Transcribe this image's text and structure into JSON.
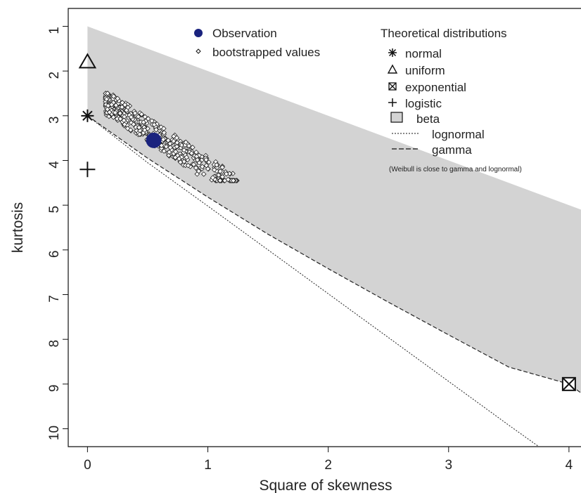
{
  "chart_data": {
    "type": "scatter",
    "title": "",
    "xlabel": "Square of skewness",
    "ylabel": "kurtosis",
    "xlim": [
      -0.16,
      4.1
    ],
    "ylim": [
      10.4,
      0.6
    ],
    "x_ticks": [
      0,
      1,
      2,
      3,
      4
    ],
    "y_ticks": [
      1,
      2,
      3,
      4,
      5,
      6,
      7,
      8,
      9,
      10
    ],
    "beta_region": {
      "color": "#d3d3d3",
      "upper": [
        [
          0,
          1
        ],
        [
          4.1,
          5.1
        ]
      ],
      "lower": [
        [
          0,
          3
        ],
        [
          0.5,
          3.95
        ],
        [
          1,
          4.82
        ],
        [
          1.5,
          5.65
        ],
        [
          2,
          6.42
        ],
        [
          2.5,
          7.17
        ],
        [
          3,
          7.9
        ],
        [
          3.5,
          8.62
        ],
        [
          4,
          9
        ],
        [
          4.1,
          9.2
        ]
      ]
    },
    "lognormal_line": [
      [
        0,
        3
      ],
      [
        0.5,
        4.05
      ],
      [
        1,
        5.02
      ],
      [
        1.5,
        6.0
      ],
      [
        2,
        6.98
      ],
      [
        2.5,
        7.96
      ],
      [
        3,
        8.94
      ],
      [
        3.5,
        9.92
      ],
      [
        3.75,
        10.4
      ]
    ],
    "gamma_line": [
      [
        0,
        3
      ],
      [
        0.5,
        3.95
      ],
      [
        1,
        4.82
      ],
      [
        1.5,
        5.65
      ],
      [
        2,
        6.42
      ],
      [
        2.5,
        7.17
      ],
      [
        3,
        7.9
      ],
      [
        3.5,
        8.62
      ],
      [
        4,
        9
      ],
      [
        4.1,
        9.2
      ]
    ],
    "observation": {
      "x": 0.55,
      "y": 3.55,
      "color": "#1a237e"
    },
    "theoretical_points": [
      {
        "name": "normal",
        "x": 0,
        "y": 3
      },
      {
        "name": "uniform",
        "x": 0,
        "y": 1.8
      },
      {
        "name": "exponential",
        "x": 4,
        "y": 9
      },
      {
        "name": "logistic",
        "x": 0,
        "y": 4.2
      }
    ],
    "bootstrapped_values": {
      "n": 420,
      "center": {
        "x": 0.5,
        "y": 3.45
      },
      "x_range": [
        0.15,
        1.25
      ],
      "y_range": [
        2.5,
        4.45
      ],
      "slope": 1.75
    }
  },
  "legend": {
    "observation": "Observation",
    "bootstrapped": "bootstrapped values",
    "theoretical_title": "Theoretical distributions",
    "normal": "normal",
    "uniform": "uniform",
    "exponential": "exponential",
    "logistic": "logistic",
    "beta": "beta",
    "lognormal": "lognormal",
    "gamma": "gamma",
    "note": "(Weibull is close to gamma and lognormal)"
  }
}
